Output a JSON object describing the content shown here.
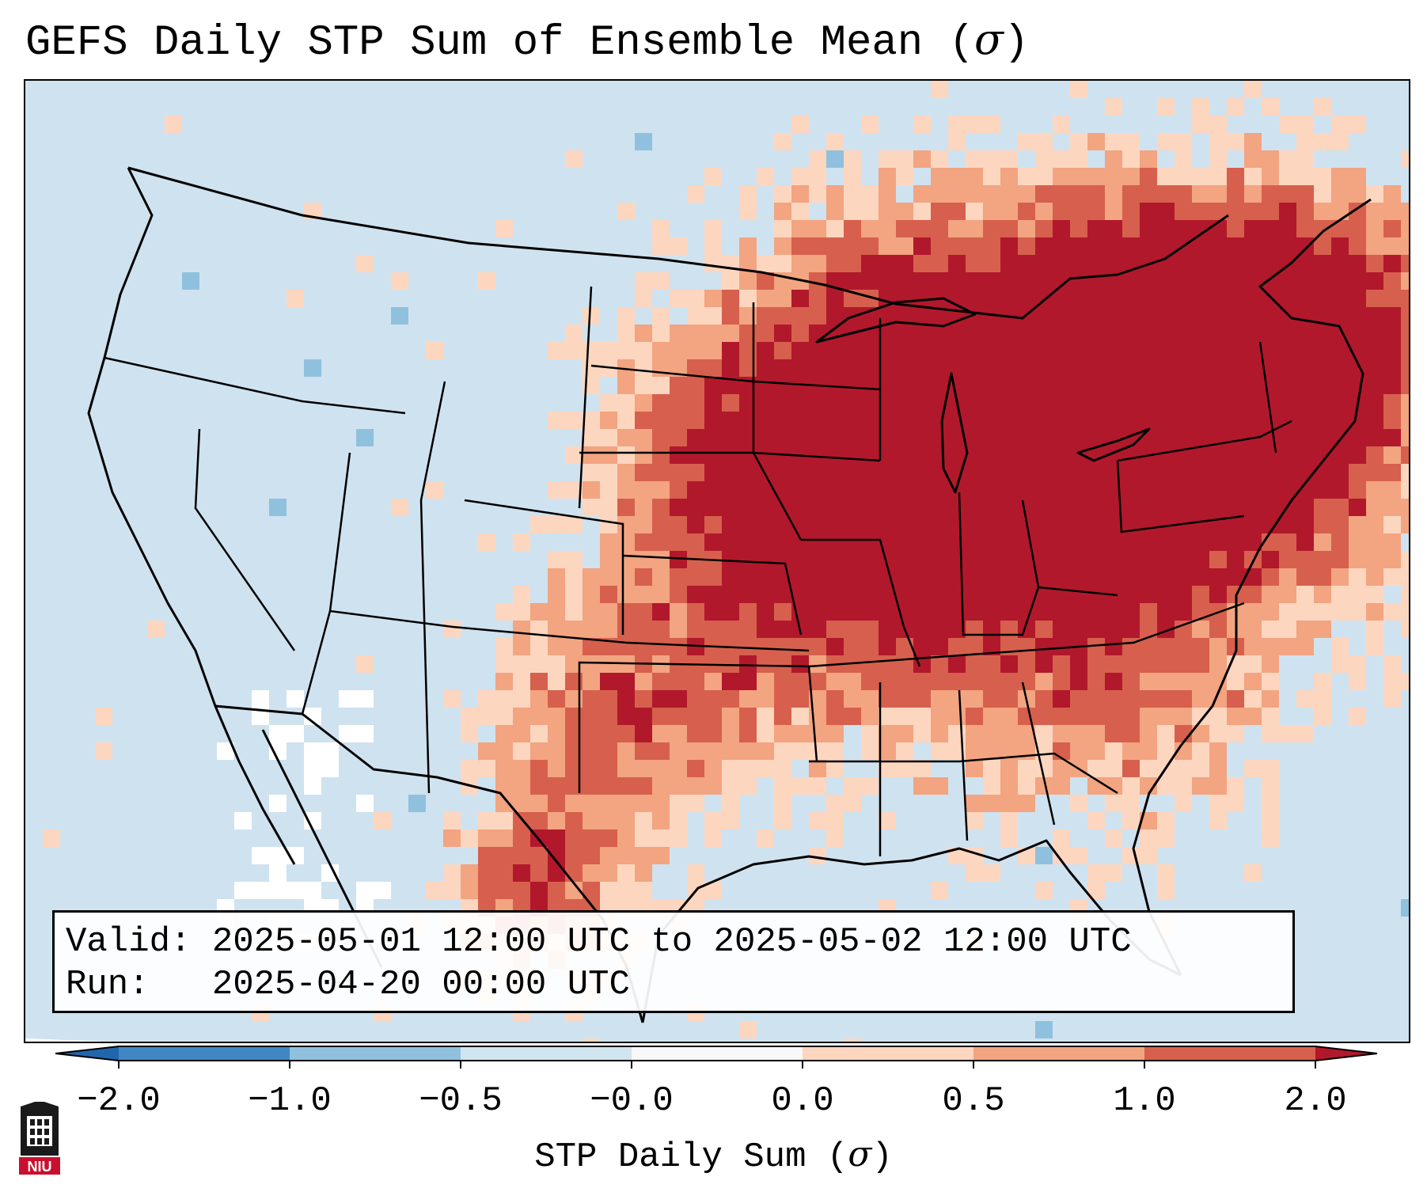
{
  "title": {
    "text": "GEFS Daily STP Sum of Ensemble Mean (",
    "symbol": "σ",
    "close": ")"
  },
  "info": {
    "valid_label": "Valid:",
    "valid_value": "2025-05-01 12:00 UTC to 2025-05-02 12:00 UTC",
    "run_label": "Run:",
    "run_value": "2025-04-20 00:00 UTC"
  },
  "colorbar": {
    "label_text": "STP Daily Sum (",
    "label_symbol": "σ",
    "label_close": ")",
    "ticks": [
      "−2.0",
      "−1.0",
      "−0.5",
      "−0.0",
      "0.0",
      "0.5",
      "1.0",
      "2.0"
    ],
    "bins": [
      {
        "from": -2.0,
        "to": -1.0,
        "color": "#3f86c3"
      },
      {
        "from": -1.0,
        "to": -0.5,
        "color": "#8fc1de"
      },
      {
        "from": -0.5,
        "to": -0.0,
        "color": "#d1e5f0"
      },
      {
        "from": -0.0,
        "to": 0.0,
        "color": "#f8f8f8"
      },
      {
        "from": 0.0,
        "to": 0.5,
        "color": "#fdd6c0"
      },
      {
        "from": 0.5,
        "to": 1.0,
        "color": "#f3a481"
      },
      {
        "from": 1.0,
        "to": 2.0,
        "color": "#d6604d"
      }
    ],
    "under_color": "#2166ac",
    "over_color": "#b2182b"
  },
  "colors": {
    "ocean": "#cfe2ef",
    "land_base": "#d1e5f0",
    "light_red": "#fdd6c0",
    "med_red": "#f3a481",
    "dark_red": "#d6604d",
    "max_red": "#b2182b",
    "light_blue": "#8fc1de",
    "white": "#ffffff"
  },
  "logo": {
    "text": "NIU",
    "name": "Northern Illinois University seal"
  }
}
